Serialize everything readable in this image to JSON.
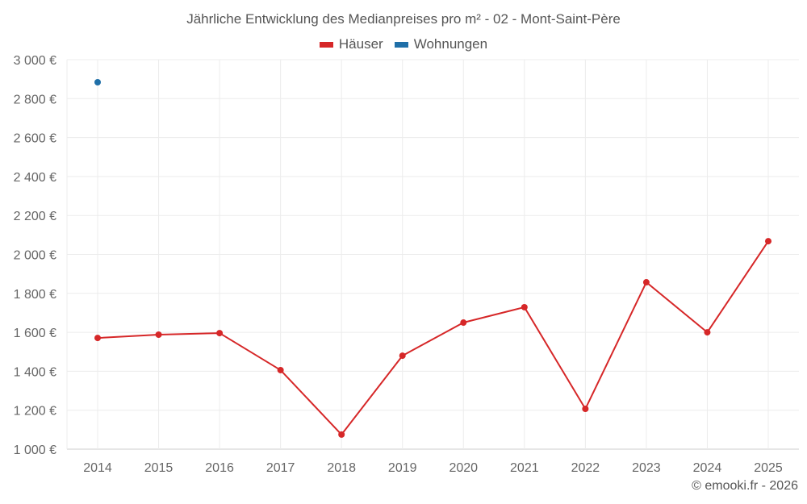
{
  "chart_data": {
    "type": "line",
    "title": "Jährliche Entwicklung des Medianpreises pro m² - 02 - Mont-Saint-Père",
    "xlabel": "",
    "ylabel": "",
    "categories": [
      "2014",
      "2015",
      "2016",
      "2017",
      "2018",
      "2019",
      "2020",
      "2021",
      "2022",
      "2023",
      "2024",
      "2025"
    ],
    "series": [
      {
        "name": "Häuser",
        "color": "#d62728",
        "values": [
          1571,
          1588,
          1596,
          1406,
          1075,
          1480,
          1650,
          1729,
          1207,
          1857,
          1600,
          2068
        ]
      },
      {
        "name": "Wohnungen",
        "color": "#1f6fa8",
        "values": [
          2884,
          null,
          null,
          null,
          null,
          null,
          null,
          null,
          null,
          null,
          null,
          null
        ]
      }
    ],
    "ylim": [
      1000,
      3000
    ],
    "yticks": [
      "1 000 €",
      "1 200 €",
      "1 400 €",
      "1 600 €",
      "1 800 €",
      "2 000 €",
      "2 200 €",
      "2 400 €",
      "2 600 €",
      "2 800 €",
      "3 000 €"
    ],
    "grid": true,
    "legend_position": "top-center"
  },
  "legend": [
    {
      "label": "Häuser",
      "color": "#d62728"
    },
    {
      "label": "Wohnungen",
      "color": "#1f6fa8"
    }
  ],
  "credit": "© emooki.fr - 2026"
}
